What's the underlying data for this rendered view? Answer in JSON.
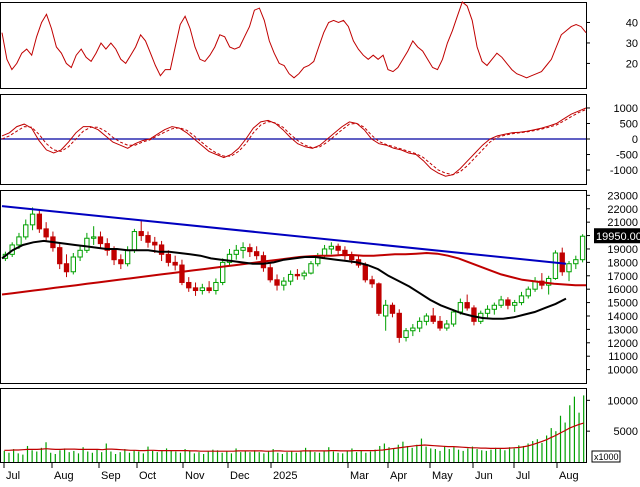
{
  "chart_data": [
    {
      "type": "line",
      "panel": "rsi",
      "ylim": [
        8,
        50
      ],
      "yticks": [
        20,
        30,
        40
      ],
      "series": [
        {
          "color": "#c00000",
          "values": [
            35,
            22,
            17,
            20,
            25,
            27,
            24,
            33,
            40,
            44,
            37,
            28,
            25,
            20,
            18,
            24,
            27,
            23,
            21,
            25,
            30,
            27,
            30,
            27,
            22,
            20,
            24,
            28,
            34,
            31,
            25,
            19,
            14,
            17,
            17,
            28,
            39,
            43,
            37,
            28,
            22,
            21,
            24,
            28,
            34,
            33,
            28,
            27,
            28,
            33,
            38,
            46,
            47,
            41,
            31,
            25,
            20,
            19,
            15,
            13,
            15,
            18,
            19,
            21,
            28,
            35,
            40,
            41,
            40,
            41,
            38,
            31,
            27,
            24,
            22,
            24,
            22,
            24,
            17,
            16,
            18,
            22,
            26,
            31,
            28,
            26,
            22,
            18,
            17,
            22,
            30,
            36,
            43,
            50,
            48,
            41,
            28,
            21,
            19,
            22,
            25,
            23,
            20,
            17,
            15,
            14,
            13,
            14,
            15,
            16,
            19,
            22,
            28,
            34,
            36,
            38,
            39,
            38,
            35
          ]
        }
      ]
    },
    {
      "type": "line",
      "panel": "oscillator",
      "ylim": [
        -1450,
        1450
      ],
      "yticks": [
        1000,
        500,
        0,
        -500,
        -1000
      ],
      "reference_line": 0,
      "series": [
        {
          "color": "#c00000",
          "style": "solid",
          "values": [
            100,
            200,
            400,
            480,
            350,
            -50,
            -350,
            -450,
            -350,
            -100,
            200,
            400,
            400,
            300,
            100,
            -100,
            -200,
            -300,
            -150,
            -50,
            0,
            150,
            300,
            400,
            350,
            200,
            0,
            -200,
            -400,
            -500,
            -600,
            -500,
            -300,
            0,
            350,
            550,
            600,
            500,
            300,
            50,
            -150,
            -250,
            -300,
            -200,
            0,
            200,
            400,
            550,
            500,
            300,
            0,
            -150,
            -200,
            -300,
            -350,
            -450,
            -500,
            -700,
            -950,
            -1100,
            -1200,
            -1150,
            -950,
            -700,
            -450,
            -200,
            0,
            100,
            150,
            200,
            220,
            250,
            300,
            350,
            420,
            500,
            650,
            800,
            900,
            1000
          ]
        },
        {
          "color": "#c00000",
          "style": "dashed",
          "values": [
            0,
            100,
            250,
            400,
            380,
            150,
            -150,
            -350,
            -400,
            -250,
            0,
            250,
            380,
            380,
            250,
            50,
            -100,
            -200,
            -200,
            -100,
            -30,
            100,
            220,
            330,
            360,
            280,
            100,
            -100,
            -300,
            -450,
            -550,
            -550,
            -400,
            -150,
            200,
            450,
            560,
            520,
            380,
            150,
            -50,
            -200,
            -280,
            -250,
            -100,
            100,
            300,
            480,
            500,
            380,
            120,
            -80,
            -180,
            -250,
            -320,
            -400,
            -470,
            -600,
            -800,
            -1000,
            -1100,
            -1150,
            -1050,
            -850,
            -600,
            -350,
            -100,
            50,
            120,
            170,
            200,
            230,
            270,
            320,
            380,
            450,
            580,
            720,
            850,
            950
          ]
        }
      ]
    },
    {
      "type": "candlestick",
      "panel": "price",
      "ylim": [
        9000,
        23400
      ],
      "yticks": [
        23000,
        22000,
        21000,
        20000,
        19000,
        18000,
        17000,
        16000,
        15000,
        14000,
        13000,
        12000,
        11000,
        10000
      ],
      "last_price_label": "19950.00",
      "candles": [
        [
          18300,
          18800,
          18100,
          18600
        ],
        [
          18600,
          19500,
          18400,
          19300
        ],
        [
          19300,
          20200,
          19000,
          19900
        ],
        [
          19900,
          21200,
          19700,
          20800
        ],
        [
          20800,
          22100,
          20400,
          21600
        ],
        [
          21600,
          21900,
          20200,
          20500
        ],
        [
          20500,
          21000,
          19600,
          19900
        ],
        [
          19900,
          20300,
          18800,
          19100
        ],
        [
          19100,
          19400,
          17500,
          17900
        ],
        [
          17900,
          18600,
          16900,
          17300
        ],
        [
          17300,
          18700,
          17100,
          18400
        ],
        [
          18400,
          19300,
          18100,
          18900
        ],
        [
          18900,
          20200,
          18700,
          19800
        ],
        [
          19800,
          20700,
          19300,
          19900
        ],
        [
          19900,
          20300,
          19000,
          19400
        ],
        [
          19400,
          19800,
          18500,
          18900
        ],
        [
          18900,
          19200,
          17800,
          18200
        ],
        [
          18200,
          18600,
          17500,
          17900
        ],
        [
          17900,
          19200,
          17700,
          18900
        ],
        [
          18900,
          20500,
          18700,
          20300
        ],
        [
          20300,
          21200,
          19600,
          20000
        ],
        [
          20000,
          20300,
          19100,
          19500
        ],
        [
          19500,
          19900,
          18700,
          19300
        ],
        [
          19300,
          19600,
          18100,
          18600
        ],
        [
          18600,
          18900,
          17700,
          18000
        ],
        [
          18000,
          18500,
          17400,
          17800
        ],
        [
          17800,
          18200,
          16300,
          16500
        ],
        [
          16500,
          16900,
          15800,
          16100
        ],
        [
          16100,
          16500,
          15500,
          15900
        ],
        [
          15900,
          16400,
          15600,
          16100
        ],
        [
          16100,
          16600,
          15700,
          15900
        ],
        [
          15900,
          16800,
          15600,
          16500
        ],
        [
          16500,
          18300,
          16300,
          18000
        ],
        [
          18000,
          19000,
          17700,
          18600
        ],
        [
          18600,
          19300,
          18200,
          18900
        ],
        [
          18900,
          19500,
          18300,
          19100
        ],
        [
          19100,
          19400,
          18400,
          18800
        ],
        [
          18800,
          19200,
          18200,
          18500
        ],
        [
          18500,
          18800,
          17300,
          17600
        ],
        [
          17600,
          17900,
          16500,
          16700
        ],
        [
          16700,
          17100,
          15900,
          16300
        ],
        [
          16300,
          16900,
          15900,
          16600
        ],
        [
          16600,
          17400,
          16300,
          17100
        ],
        [
          17100,
          17500,
          16700,
          17000
        ],
        [
          17000,
          17400,
          16700,
          17200
        ],
        [
          17200,
          18100,
          17100,
          17900
        ],
        [
          17900,
          18700,
          17700,
          18500
        ],
        [
          18500,
          19300,
          18300,
          19000
        ],
        [
          19000,
          19500,
          18600,
          19200
        ],
        [
          19200,
          19400,
          18600,
          18900
        ],
        [
          18900,
          19200,
          18200,
          18500
        ],
        [
          18500,
          18800,
          17900,
          18200
        ],
        [
          18200,
          18500,
          17600,
          17800
        ],
        [
          17800,
          18000,
          16500,
          16700
        ],
        [
          16700,
          17000,
          16100,
          16400
        ],
        [
          16400,
          16500,
          14000,
          14200
        ],
        [
          14000,
          15200,
          12900,
          14800
        ],
        [
          14800,
          15000,
          13900,
          14200
        ],
        [
          14200,
          14500,
          12000,
          12400
        ],
        [
          12400,
          13100,
          12100,
          12900
        ],
        [
          12900,
          13400,
          12500,
          13100
        ],
        [
          13100,
          13900,
          12800,
          13600
        ],
        [
          13600,
          14200,
          13300,
          14000
        ],
        [
          14000,
          14600,
          13400,
          13600
        ],
        [
          13600,
          14000,
          12900,
          13100
        ],
        [
          13100,
          13700,
          12900,
          13400
        ],
        [
          13400,
          14500,
          13200,
          14300
        ],
        [
          14300,
          15300,
          14100,
          15000
        ],
        [
          15000,
          15600,
          14400,
          14600
        ],
        [
          14600,
          14800,
          13300,
          13600
        ],
        [
          13600,
          14400,
          13400,
          14200
        ],
        [
          14200,
          14800,
          13900,
          14500
        ],
        [
          14500,
          15000,
          14100,
          14800
        ],
        [
          14800,
          15500,
          14600,
          15200
        ],
        [
          15200,
          15400,
          14500,
          14800
        ],
        [
          14800,
          15200,
          14300,
          15000
        ],
        [
          15000,
          15800,
          14800,
          15500
        ],
        [
          15500,
          16200,
          15300,
          16000
        ],
        [
          16000,
          16900,
          15800,
          16600
        ],
        [
          16600,
          17200,
          16000,
          16300
        ],
        [
          16300,
          17000,
          15600,
          16800
        ],
        [
          16800,
          18900,
          16700,
          18700
        ],
        [
          18700,
          19100,
          17000,
          17300
        ],
        [
          17300,
          18100,
          16600,
          17900
        ],
        [
          17900,
          18500,
          17500,
          18200
        ],
        [
          18200,
          20100,
          18000,
          19950
        ]
      ],
      "ma_black": [
        18300,
        18900,
        19300,
        19500,
        19600,
        19500,
        19400,
        19300,
        19200,
        19100,
        19000,
        19000,
        18900,
        18900,
        18900,
        18800,
        18800,
        18700,
        18600,
        18500,
        18300,
        18200,
        18100,
        18000,
        17900,
        17900,
        18000,
        18200,
        18300,
        18400,
        18400,
        18300,
        18200,
        18100,
        18000,
        17800,
        17500,
        17000,
        16600,
        16200,
        15700,
        15200,
        14800,
        14500,
        14200,
        14000,
        13850,
        13800,
        13800,
        13900,
        14100,
        14300,
        14600,
        14900,
        15300
      ],
      "ma_red": [
        15600,
        15700,
        15800,
        15900,
        16000,
        16100,
        16200,
        16300,
        16400,
        16500,
        16600,
        16700,
        16800,
        16900,
        17000,
        17100,
        17200,
        17300,
        17400,
        17500,
        17600,
        17700,
        17800,
        17900,
        18000,
        18100,
        18200,
        18300,
        18400,
        18450,
        18500,
        18500,
        18550,
        18550,
        18500,
        18500,
        18550,
        18600,
        18600,
        18650,
        18700,
        18650,
        18500,
        18300,
        18000,
        17700,
        17400,
        17100,
        16900,
        16700,
        16600,
        16500,
        16400,
        16350,
        16300,
        16300
      ],
      "trendline": {
        "from": 22200,
        "to": 17900
      }
    },
    {
      "type": "bar",
      "panel": "volume",
      "ylim": [
        0,
        12000
      ],
      "yticks": [
        10000,
        5000
      ],
      "unit_label": "x1000",
      "values": [
        1800,
        1500,
        2100,
        1400,
        1200,
        2600,
        1900,
        1700,
        2300,
        3200,
        1500,
        1300,
        1900,
        2200,
        1600,
        1800,
        1400,
        2400,
        1700,
        1500,
        2000,
        1600,
        3000,
        1700,
        1300,
        1600,
        2100,
        1500,
        1900,
        1700,
        1400,
        2500,
        1800,
        1600,
        1800,
        2200,
        1900,
        1700,
        1500,
        2100,
        1800,
        1400,
        1600,
        1300,
        1700,
        2000,
        1900,
        1500,
        1700,
        1400,
        2200,
        1600,
        1800,
        1600,
        1900,
        1600,
        1400,
        1700,
        2100,
        1500,
        1300,
        1600,
        1800,
        1500,
        1700,
        2300,
        1900,
        1600,
        1500,
        1800,
        2400,
        1700,
        1500,
        1400,
        1800,
        2200,
        1600,
        1800,
        1500,
        1700,
        2000,
        2600,
        3000,
        2400,
        2200,
        2800,
        3300,
        2600,
        2300,
        2800,
        3800,
        2500,
        2200,
        2100,
        1800,
        2600,
        2100,
        2400,
        2000,
        1800,
        2200,
        2500,
        2100,
        1900,
        1800,
        2000,
        2300,
        2100,
        1900,
        2400,
        2200,
        2700,
        2600,
        3000,
        3400,
        3700,
        3100,
        4300,
        5500,
        5000,
        7500,
        6400,
        9200,
        10600,
        8000,
        10800
      ],
      "ma_values": [
        1900,
        1900,
        1950,
        1950,
        2000,
        2050,
        2050,
        2050,
        2100,
        2150,
        2100,
        2050,
        2050,
        2100,
        2100,
        2100,
        2050,
        2050,
        2050,
        2050,
        2050,
        2000,
        2100,
        2100,
        2050,
        2000,
        1950,
        1900,
        1900,
        1850,
        1850,
        1900,
        1900,
        1850,
        1850,
        1850,
        1850,
        1850,
        1850,
        1850,
        1800,
        1800,
        1750,
        1750,
        1750,
        1750,
        1750,
        1750,
        1750,
        1750,
        1800,
        1800,
        1800,
        1800,
        1800,
        1800,
        1750,
        1750,
        1800,
        1800,
        1750,
        1750,
        1750,
        1750,
        1800,
        1800,
        1800,
        1800,
        1800,
        1800,
        1850,
        1850,
        1800,
        1800,
        1800,
        1850,
        1850,
        1850,
        1850,
        1850,
        1900,
        1950,
        2050,
        2150,
        2250,
        2350,
        2450,
        2550,
        2650,
        2700,
        2750,
        2700,
        2650,
        2600,
        2550,
        2500,
        2500,
        2450,
        2400,
        2350,
        2300,
        2300,
        2250,
        2250,
        2200,
        2200,
        2200,
        2200,
        2250,
        2300,
        2350,
        2450,
        2600,
        2800,
        3050,
        3300,
        3600,
        3950,
        4300,
        4700,
        5100,
        5500,
        5800,
        6100,
        6300
      ]
    }
  ],
  "x_axis": {
    "labels": [
      "Jul",
      "Aug",
      "Sep",
      "Oct",
      "Nov",
      "Dec",
      "2025",
      "Mar",
      "Apr",
      "May",
      "Jun",
      "Jul",
      "Aug"
    ]
  }
}
